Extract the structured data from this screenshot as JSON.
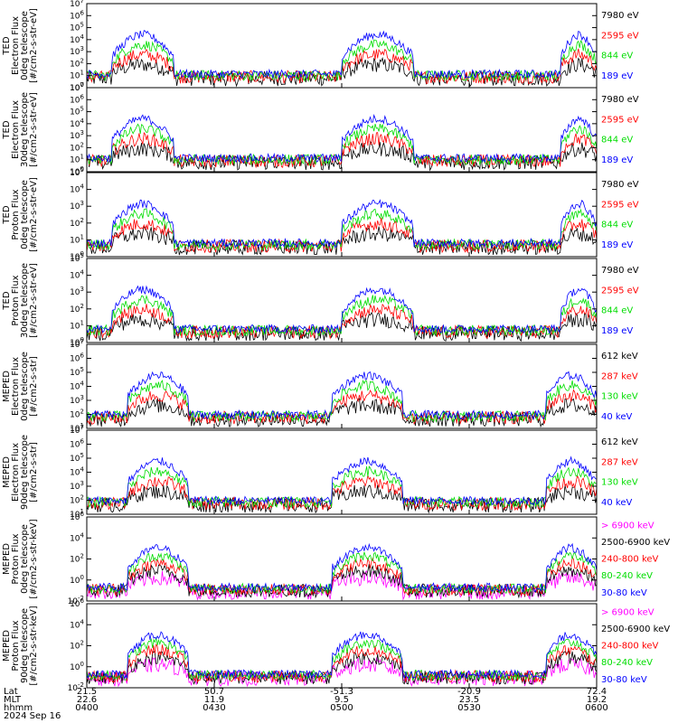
{
  "colors": {
    "black": "#000000",
    "red": "#ff0000",
    "green": "#00dd00",
    "blue": "#0000ff",
    "magenta": "#ff00ff"
  },
  "chart_data": [
    {
      "type": "line",
      "ylabel": [
        "TED",
        "Electron Flux",
        "0deg telescope",
        "[#/cm2-s-str-eV]"
      ],
      "ylog": true,
      "ylim_exp": [
        0,
        7
      ],
      "yticks_exp": [
        0,
        1,
        2,
        3,
        4,
        5,
        6,
        7
      ],
      "series": [
        {
          "name": "7980 eV",
          "color": "#000000"
        },
        {
          "name": "2595 eV",
          "color": "#ff0000"
        },
        {
          "name": "844 eV",
          "color": "#00dd00"
        },
        {
          "name": "189 eV",
          "color": "#0000ff"
        }
      ]
    },
    {
      "type": "line",
      "ylabel": [
        "TED",
        "Electron Flux",
        "30deg telescope",
        "[#/cm2-s-str-eV]"
      ],
      "ylog": true,
      "ylim_exp": [
        0,
        7
      ],
      "yticks_exp": [
        0,
        1,
        2,
        3,
        4,
        5,
        6,
        7
      ],
      "series": [
        {
          "name": "7980 eV",
          "color": "#000000"
        },
        {
          "name": "2595 eV",
          "color": "#ff0000"
        },
        {
          "name": "844 eV",
          "color": "#00dd00"
        },
        {
          "name": "189 eV",
          "color": "#0000ff"
        }
      ]
    },
    {
      "type": "line",
      "ylabel": [
        "TED",
        "Proton Flux",
        "0deg telescope",
        "[#/cm2-s-str-eV]"
      ],
      "ylog": true,
      "ylim_exp": [
        0,
        5
      ],
      "yticks_exp": [
        0,
        1,
        2,
        3,
        4,
        5
      ],
      "series": [
        {
          "name": "7980 eV",
          "color": "#000000"
        },
        {
          "name": "2595 eV",
          "color": "#ff0000"
        },
        {
          "name": "844 eV",
          "color": "#00dd00"
        },
        {
          "name": "189 eV",
          "color": "#0000ff"
        }
      ]
    },
    {
      "type": "line",
      "ylabel": [
        "TED",
        "Proton Flux",
        "30deg telescope",
        "[#/cm2-s-str-eV]"
      ],
      "ylog": true,
      "ylim_exp": [
        0,
        5
      ],
      "yticks_exp": [
        0,
        1,
        2,
        3,
        4,
        5
      ],
      "series": [
        {
          "name": "7980 eV",
          "color": "#000000"
        },
        {
          "name": "2595 eV",
          "color": "#ff0000"
        },
        {
          "name": "844 eV",
          "color": "#00dd00"
        },
        {
          "name": "189 eV",
          "color": "#0000ff"
        }
      ]
    },
    {
      "type": "line",
      "ylabel": [
        "MEPED",
        "Electron Flux",
        "0deg telescope",
        "[#/cm2-s-str]"
      ],
      "ylog": true,
      "ylim_exp": [
        1,
        7
      ],
      "yticks_exp": [
        1,
        2,
        3,
        4,
        5,
        6,
        7
      ],
      "series": [
        {
          "name": "612 keV",
          "color": "#000000"
        },
        {
          "name": "287 keV",
          "color": "#ff0000"
        },
        {
          "name": "130 keV",
          "color": "#00dd00"
        },
        {
          "name": "40 keV",
          "color": "#0000ff"
        }
      ]
    },
    {
      "type": "line",
      "ylabel": [
        "MEPED",
        "Electron Flux",
        "90deg telescope",
        "[#/cm2-s-str]"
      ],
      "ylog": true,
      "ylim_exp": [
        1,
        7
      ],
      "yticks_exp": [
        1,
        2,
        3,
        4,
        5,
        6,
        7
      ],
      "series": [
        {
          "name": "612 keV",
          "color": "#000000"
        },
        {
          "name": "287 keV",
          "color": "#ff0000"
        },
        {
          "name": "130 keV",
          "color": "#00dd00"
        },
        {
          "name": "40 keV",
          "color": "#0000ff"
        }
      ]
    },
    {
      "type": "line",
      "ylabel": [
        "MEPED",
        "Proton Flux",
        "0deg telescope",
        "[#/cm2-s-str-keV]"
      ],
      "ylog": true,
      "ylim_exp": [
        -2,
        6
      ],
      "yticks_exp": [
        -2,
        0,
        2,
        4,
        6
      ],
      "series": [
        {
          "name": "> 6900 keV",
          "color": "#ff00ff"
        },
        {
          "name": "2500-6900 keV",
          "color": "#000000"
        },
        {
          "name": "240-800 keV",
          "color": "#ff0000"
        },
        {
          "name": "80-240 keV",
          "color": "#00dd00"
        },
        {
          "name": "30-80 keV",
          "color": "#0000ff"
        }
      ]
    },
    {
      "type": "line",
      "ylabel": [
        "MEPED",
        "Proton Flux",
        "90deg telescope",
        "[#/cm2-s-str-keV]"
      ],
      "ylog": true,
      "ylim_exp": [
        -2,
        6
      ],
      "yticks_exp": [
        -2,
        0,
        2,
        4,
        6
      ],
      "series": [
        {
          "name": "> 6900 keV",
          "color": "#ff00ff"
        },
        {
          "name": "2500-6900 keV",
          "color": "#000000"
        },
        {
          "name": "240-800 keV",
          "color": "#ff0000"
        },
        {
          "name": "80-240 keV",
          "color": "#00dd00"
        },
        {
          "name": "30-80 keV",
          "color": "#0000ff"
        }
      ]
    }
  ],
  "footer": {
    "row_labels": [
      "Lat",
      "MLT",
      "hhmm",
      "2024 Sep 16"
    ],
    "columns": [
      {
        "lat": "21.5",
        "mlt": "22.6",
        "hhmm": "0400"
      },
      {
        "lat": "50.7",
        "mlt": "11.9",
        "hhmm": "0430"
      },
      {
        "lat": "-51.3",
        "mlt": "9.5",
        "hhmm": "0500"
      },
      {
        "lat": "-20.9",
        "mlt": "23.5",
        "hhmm": "0530"
      },
      {
        "lat": "72.4",
        "mlt": "19.2",
        "hhmm": "0600"
      }
    ]
  }
}
